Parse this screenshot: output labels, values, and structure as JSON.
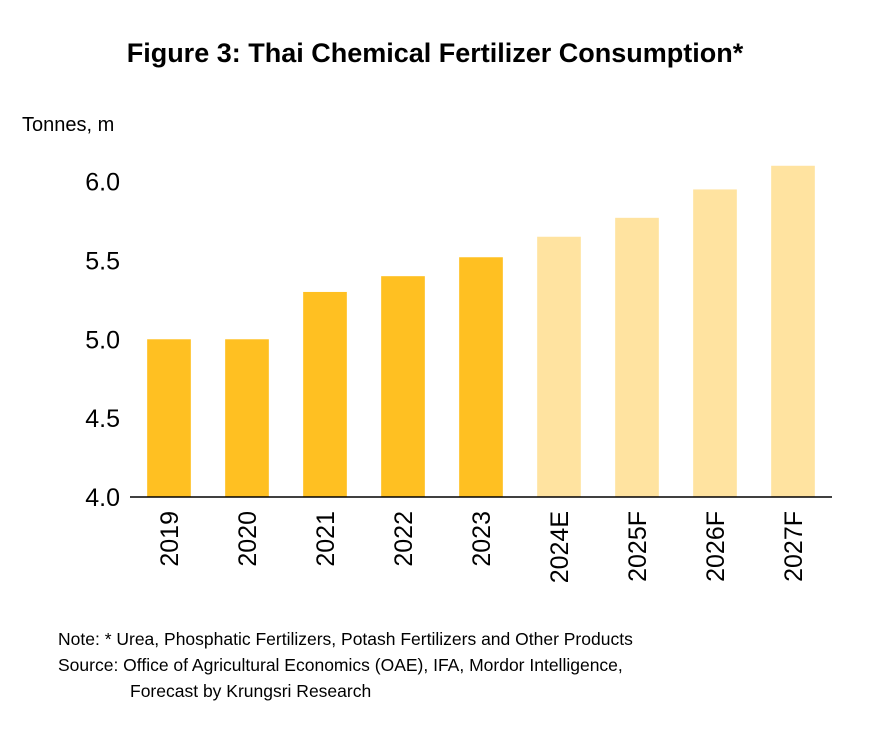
{
  "chart_data": {
    "type": "bar",
    "title": "Figure 3: Thai Chemical Fertilizer Consumption*",
    "ylabel": "Tonnes, m",
    "xlabel": "",
    "categories": [
      "2019",
      "2020",
      "2021",
      "2022",
      "2023",
      "2024E",
      "2025F",
      "2026F",
      "2027F"
    ],
    "values": [
      5.0,
      5.0,
      5.3,
      5.4,
      5.52,
      5.65,
      5.77,
      5.95,
      6.1
    ],
    "bar_types": [
      "actual",
      "actual",
      "actual",
      "actual",
      "actual",
      "forecast",
      "forecast",
      "forecast",
      "forecast"
    ],
    "ylim": [
      4.0,
      6.2
    ],
    "yticks": [
      "4.0",
      "4.5",
      "5.0",
      "5.5",
      "6.0"
    ],
    "ytick_values": [
      4.0,
      4.5,
      5.0,
      5.5,
      6.0
    ],
    "grid": false,
    "legend": "none",
    "colors": {
      "actual": "#FFC022",
      "forecast": "#FFE3A0",
      "axis": "#000000"
    }
  },
  "notes": {
    "note_line": "Note: * Urea, Phosphatic Fertilizers, Potash Fertilizers and Other Products",
    "source_line1": "Source: Office of Agricultural Economics (OAE), IFA, Mordor Intelligence,",
    "source_line2": "Forecast by Krungsri Research"
  }
}
